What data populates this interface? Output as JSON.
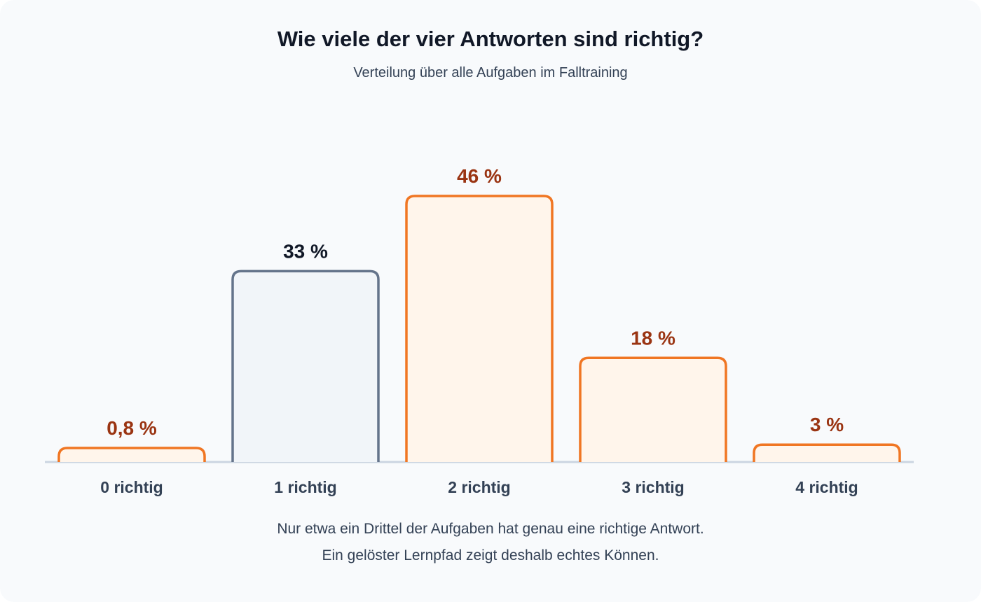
{
  "header": {
    "title": "Wie viele der vier Antworten sind richtig?",
    "subtitle": "Verteilung über alle Aufgaben im Falltraining"
  },
  "footnote": {
    "line1": "Nur etwa ein Drittel der Aufgaben hat genau eine richtige Antwort.",
    "line2": "Ein gelöster Lernpfad zeigt deshalb echtes Können."
  },
  "colors": {
    "highlight_stroke": "#64748b",
    "highlight_fill": "#f1f5f9",
    "highlight_label": "#111827",
    "default_stroke": "#f07623",
    "default_fill": "#fff5eb",
    "default_label": "#9a3412",
    "category_label": "#334155",
    "baseline": "#cbd5e1"
  },
  "chart_data": {
    "type": "bar",
    "title": "Wie viele der vier Antworten sind richtig?",
    "subtitle": "Verteilung über alle Aufgaben im Falltraining",
    "categories": [
      "0 richtig",
      "1 richtig",
      "2 richtig",
      "3 richtig",
      "4 richtig"
    ],
    "values": [
      0.8,
      33,
      46,
      18,
      3
    ],
    "value_labels": [
      "0,8 %",
      "33 %",
      "46 %",
      "18 %",
      "3 %"
    ],
    "highlighted_index": 1,
    "unit": "%",
    "ylim": [
      0,
      46
    ],
    "grid": false,
    "legend": "none",
    "xlabel": "",
    "ylabel": ""
  }
}
